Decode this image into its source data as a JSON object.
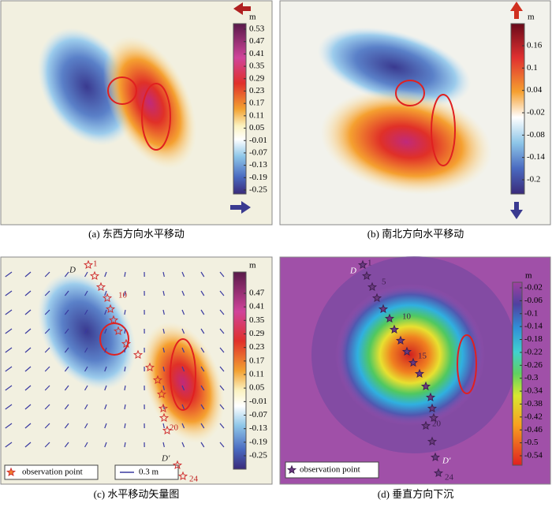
{
  "panels": [
    {
      "caption": "(a) 东西方向水平移动",
      "unit": "m",
      "ticks": [
        "0.53",
        "0.47",
        "0.41",
        "0.35",
        "0.29",
        "0.23",
        "0.17",
        "0.11",
        "0.05",
        "-0.01",
        "-0.07",
        "-0.13",
        "-0.19",
        "-0.25"
      ]
    },
    {
      "caption": "(b) 南北方向水平移动",
      "unit": "m",
      "ticks": [
        "0.16",
        "0.1",
        "0.04",
        "-0.02",
        "-0.08",
        "-0.14",
        "-0.2"
      ]
    },
    {
      "caption": "(c) 水平移动矢量图",
      "unit": "m",
      "ticks": [
        "0.47",
        "0.41",
        "0.35",
        "0.29",
        "0.23",
        "0.17",
        "0.11",
        "0.05",
        "-0.01",
        "-0.07",
        "-0.13",
        "-0.19",
        "-0.25"
      ],
      "start_label": "D",
      "end_label": "D'",
      "point_labels": [
        "1",
        "10",
        "20",
        "24"
      ],
      "legend": [
        "observation point",
        "0.3 m"
      ]
    },
    {
      "caption": "(d) 垂直方向下沉",
      "unit": "m",
      "ticks": [
        "-0.02",
        "-0.06",
        "-0.1",
        "-0.14",
        "-0.18",
        "-0.22",
        "-0.26",
        "-0.3",
        "-0.34",
        "-0.38",
        "-0.42",
        "-0.46",
        "-0.5",
        "-0.54"
      ],
      "start_label": "D",
      "end_label": "D'",
      "point_labels": [
        "1",
        "5",
        "10",
        "15",
        "20",
        "24"
      ],
      "legend": [
        "observation point"
      ]
    }
  ]
}
